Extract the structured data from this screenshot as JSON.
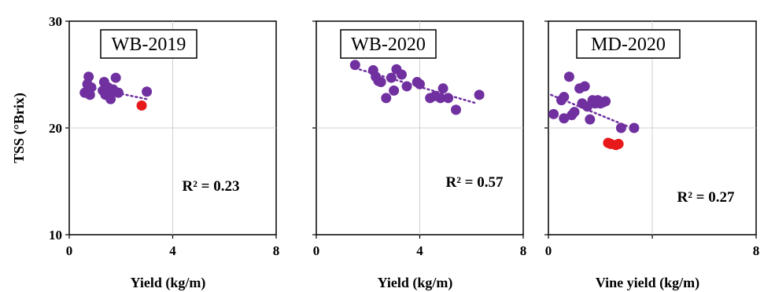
{
  "chart_data": [
    {
      "type": "scatter",
      "title": "WB-2019",
      "xlabel": "Yield (kg/m)",
      "ylabel": "TSS (°Brix)",
      "xlim": [
        0,
        8
      ],
      "ylim": [
        10,
        30
      ],
      "x_ticks": [
        "0",
        "4",
        "8"
      ],
      "y_ticks": [
        "10",
        "20",
        "30"
      ],
      "annotation": "R² = 0.23",
      "grid": true,
      "trendline": [
        [
          0.6,
          23.9
        ],
        [
          3.0,
          22.7
        ]
      ],
      "series": [
        {
          "color": "#7030a0",
          "points": [
            [
              0.6,
              23.3
            ],
            [
              0.7,
              24.1
            ],
            [
              0.75,
              24.8
            ],
            [
              0.8,
              23.1
            ],
            [
              0.85,
              23.8
            ],
            [
              1.3,
              23.5
            ],
            [
              1.35,
              24.3
            ],
            [
              1.4,
              23.1
            ],
            [
              1.5,
              23.8
            ],
            [
              1.55,
              23.2
            ],
            [
              1.6,
              22.7
            ],
            [
              1.7,
              23.6
            ],
            [
              1.8,
              24.7
            ],
            [
              1.9,
              23.3
            ],
            [
              3.0,
              23.4
            ]
          ]
        },
        {
          "color": "#e8191b",
          "points": [
            [
              2.8,
              22.1
            ]
          ]
        }
      ]
    },
    {
      "type": "scatter",
      "title": "WB-2020",
      "xlabel": "Yield (kg/m)",
      "ylabel": "",
      "xlim": [
        0,
        8
      ],
      "ylim": [
        10,
        30
      ],
      "x_ticks": [
        "0",
        "4",
        "8"
      ],
      "y_ticks": [],
      "annotation": "R² = 0.57",
      "grid": true,
      "trendline": [
        [
          1.5,
          25.6
        ],
        [
          6.2,
          22.3
        ]
      ],
      "series": [
        {
          "color": "#7030a0",
          "points": [
            [
              1.5,
              25.9
            ],
            [
              2.2,
              25.4
            ],
            [
              2.3,
              24.8
            ],
            [
              2.4,
              24.4
            ],
            [
              2.5,
              24.3
            ],
            [
              2.7,
              22.8
            ],
            [
              2.9,
              24.7
            ],
            [
              3.0,
              23.5
            ],
            [
              3.1,
              25.5
            ],
            [
              3.3,
              25.0
            ],
            [
              3.5,
              23.9
            ],
            [
              3.9,
              24.3
            ],
            [
              4.0,
              24.1
            ],
            [
              4.4,
              22.8
            ],
            [
              4.6,
              23.0
            ],
            [
              4.8,
              22.8
            ],
            [
              4.9,
              23.7
            ],
            [
              5.1,
              22.8
            ],
            [
              5.4,
              21.7
            ],
            [
              6.3,
              23.1
            ]
          ]
        }
      ]
    },
    {
      "type": "scatter",
      "title": "MD-2020",
      "xlabel": "Vine yield (kg/m)",
      "ylabel": "",
      "xlim": [
        0,
        8
      ],
      "ylim": [
        10,
        30
      ],
      "x_ticks": [
        "0",
        "8"
      ],
      "y_ticks": [],
      "annotation": "R² = 0.27",
      "grid": true,
      "trendline": [
        [
          0.1,
          23.1
        ],
        [
          3.1,
          20.1
        ]
      ],
      "series": [
        {
          "color": "#7030a0",
          "points": [
            [
              0.2,
              21.3
            ],
            [
              0.5,
              22.6
            ],
            [
              0.6,
              22.9
            ],
            [
              0.6,
              20.9
            ],
            [
              0.8,
              24.8
            ],
            [
              0.9,
              21.2
            ],
            [
              1.0,
              21.5
            ],
            [
              1.2,
              23.7
            ],
            [
              1.3,
              22.3
            ],
            [
              1.4,
              23.9
            ],
            [
              1.5,
              22.0
            ],
            [
              1.6,
              20.8
            ],
            [
              1.7,
              22.6
            ],
            [
              1.8,
              22.3
            ],
            [
              1.9,
              22.6
            ],
            [
              2.0,
              22.3
            ],
            [
              2.1,
              22.4
            ],
            [
              2.2,
              22.5
            ],
            [
              2.8,
              20.0
            ],
            [
              3.3,
              20.0
            ]
          ]
        },
        {
          "color": "#e8191b",
          "points": [
            [
              2.3,
              18.6
            ],
            [
              2.4,
              18.5
            ],
            [
              2.6,
              18.4
            ],
            [
              2.7,
              18.5
            ]
          ]
        }
      ]
    }
  ]
}
